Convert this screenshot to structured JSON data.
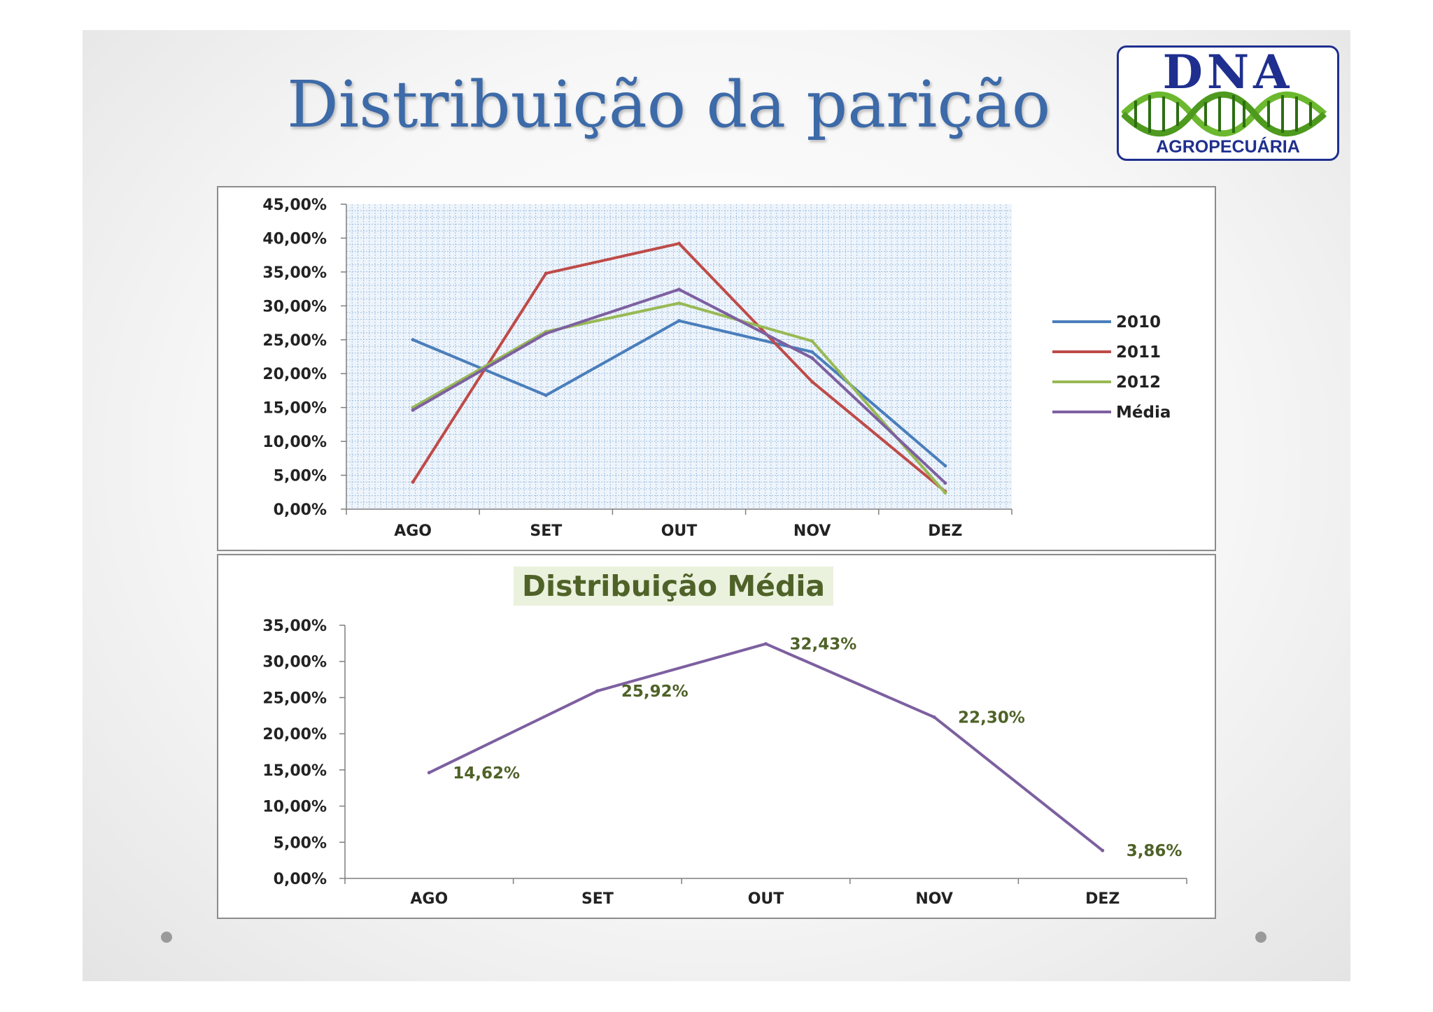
{
  "slide": {
    "title": "Distribuição da parição"
  },
  "logo": {
    "top_text": "DNA",
    "bottom_text": "AGROPECUÁRIA"
  },
  "colors": {
    "title": "#3d6aa8",
    "series_2010": "#4a7ebb",
    "series_2011": "#be4b48",
    "series_2012": "#98b954",
    "series_media": "#7d60a0",
    "data_label": "#4f6228",
    "chart2_title_bg": "#eaf1dd"
  },
  "chart_data": [
    {
      "type": "line",
      "categories": [
        "AGO",
        "SET",
        "OUT",
        "NOV",
        "DEZ"
      ],
      "series": [
        {
          "name": "2010",
          "color": "#4a7ebb",
          "values": [
            25.0,
            16.8,
            27.8,
            23.2,
            6.4
          ]
        },
        {
          "name": "2011",
          "color": "#be4b48",
          "values": [
            4.0,
            34.8,
            39.2,
            18.8,
            2.6
          ]
        },
        {
          "name": "2012",
          "color": "#98b954",
          "values": [
            15.0,
            26.2,
            30.4,
            24.8,
            2.4
          ]
        },
        {
          "name": "Média",
          "color": "#7d60a0",
          "values": [
            14.62,
            25.92,
            32.43,
            22.3,
            3.86
          ]
        }
      ],
      "ylim": [
        0,
        45
      ],
      "yticks": [
        "0,00%",
        "5,00%",
        "10,00%",
        "15,00%",
        "20,00%",
        "25,00%",
        "30,00%",
        "35,00%",
        "40,00%",
        "45,00%"
      ],
      "grid": true,
      "legend_position": "right"
    },
    {
      "type": "line",
      "title": "Distribuição Média",
      "categories": [
        "AGO",
        "SET",
        "OUT",
        "NOV",
        "DEZ"
      ],
      "series": [
        {
          "name": "Média",
          "color": "#7d60a0",
          "values": [
            14.62,
            25.92,
            32.43,
            22.3,
            3.86
          ]
        }
      ],
      "data_labels": [
        "14,62%",
        "25,92%",
        "32,43%",
        "22,30%",
        "3,86%"
      ],
      "ylim": [
        0,
        35
      ],
      "yticks": [
        "0,00%",
        "5,00%",
        "10,00%",
        "15,00%",
        "20,00%",
        "25,00%",
        "30,00%",
        "35,00%"
      ],
      "grid": false,
      "legend_position": "none"
    }
  ]
}
